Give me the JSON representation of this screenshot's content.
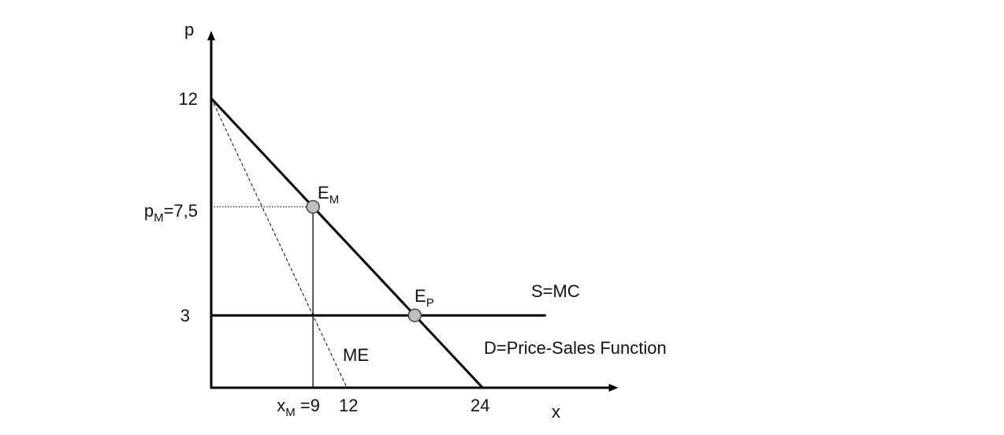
{
  "chart_data": {
    "type": "line",
    "title": "",
    "xlabel": "x",
    "ylabel": "p",
    "xlim": [
      0,
      36
    ],
    "ylim": [
      0,
      14.8
    ],
    "y_ticks": [
      {
        "value": 12,
        "label": "12"
      },
      {
        "value": 3,
        "label": "3"
      }
    ],
    "y_tick_pm": {
      "value": 7.5,
      "main": "p",
      "sub": "M",
      "rest": "=7,5"
    },
    "x_ticks": [
      {
        "value": 12,
        "label": "12"
      },
      {
        "value": 24,
        "label": "24"
      }
    ],
    "x_tick_xm": {
      "value": 9,
      "main": "x",
      "sub": "M",
      "rest": " =9"
    },
    "series": [
      {
        "name": "D=Price-Sales Function",
        "style": "solid",
        "points": [
          [
            0,
            12
          ],
          [
            24,
            0
          ]
        ]
      },
      {
        "name": "ME",
        "style": "dashed",
        "points": [
          [
            0,
            12
          ],
          [
            12,
            0
          ]
        ]
      },
      {
        "name": "S=MC",
        "style": "solid",
        "points": [
          [
            0,
            3
          ],
          [
            29.6,
            3
          ]
        ]
      }
    ],
    "guides": [
      {
        "style": "dotted",
        "points": [
          [
            0,
            7.5
          ],
          [
            9,
            7.5
          ]
        ]
      },
      {
        "style": "solid-thin",
        "points": [
          [
            9,
            7.5
          ],
          [
            9,
            0
          ]
        ]
      }
    ],
    "equilibria": [
      {
        "main": "E",
        "sub": "M",
        "x": 9,
        "y": 7.5
      },
      {
        "main": "E",
        "sub": "P",
        "x": 18,
        "y": 3
      }
    ],
    "curve_labels": {
      "mc": "S=MC",
      "demand": "D=Price-Sales Function",
      "me": "ME"
    },
    "colors": {
      "line": "#000000",
      "marker_fill": "#c0c0c0",
      "marker_stroke": "#444444"
    }
  }
}
